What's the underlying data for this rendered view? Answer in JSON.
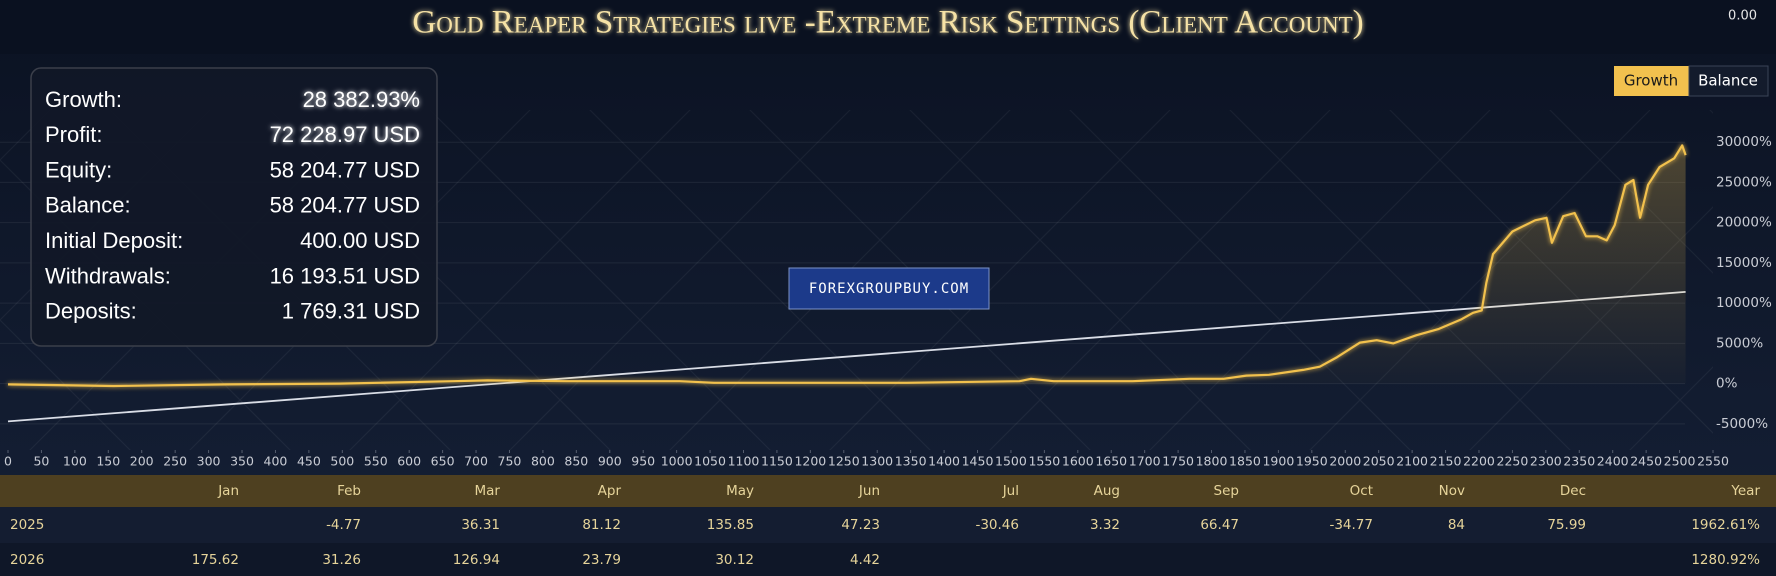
{
  "title": "Gold Reaper Strategies live -Extreme Risk Settings (Client Account)",
  "corner_value": "0.00",
  "watermark": "FOREXGROUPBUY.COM",
  "view_buttons": [
    "Growth",
    "Balance"
  ],
  "stats": [
    {
      "label": "Growth:",
      "value": "28 382.93%"
    },
    {
      "label": "Profit:",
      "value": "72 228.97 USD"
    },
    {
      "label": "Equity:",
      "value": "58 204.77 USD"
    },
    {
      "label": "Balance:",
      "value": "58 204.77 USD"
    },
    {
      "label": "Initial Deposit:",
      "value": "400.00 USD"
    },
    {
      "label": "Withdrawals:",
      "value": "16 193.51 USD"
    },
    {
      "label": "Deposits:",
      "value": "1 769.31 USD"
    }
  ],
  "chart_data": {
    "type": "line",
    "x": [
      0,
      158,
      327,
      496,
      666,
      717,
      835,
      1005,
      1056,
      1174,
      1344,
      1513,
      1530,
      1564,
      1682,
      1767,
      1818,
      1852,
      1886,
      1937,
      1962,
      1988,
      2022,
      2047,
      2072,
      2106,
      2140,
      2174,
      2191,
      2204,
      2211,
      2221,
      2250,
      2284,
      2301,
      2309,
      2326,
      2343,
      2360,
      2377,
      2391,
      2403,
      2419,
      2431,
      2441,
      2453,
      2470,
      2492,
      2504,
      2509
    ],
    "series": [
      {
        "name": "Growth",
        "color": "#f2c14e",
        "values": [
          -100,
          -300,
          -100,
          0,
          300,
          400,
          300,
          300,
          100,
          100,
          100,
          300,
          600,
          300,
          300,
          600,
          600,
          1000,
          1100,
          1700,
          2100,
          3300,
          5100,
          5400,
          5000,
          6000,
          6800,
          8000,
          8800,
          9100,
          12500,
          16100,
          18900,
          20300,
          20600,
          17500,
          20800,
          21200,
          18300,
          18300,
          17800,
          19700,
          24700,
          25300,
          20600,
          24700,
          26900,
          28000,
          29600,
          28400
        ]
      }
    ],
    "trend": {
      "color": "#d9dde6",
      "x": [
        0,
        2509
      ],
      "values": [
        -4700,
        11400
      ]
    },
    "xlim": [
      0,
      2550
    ],
    "xticks": [
      0,
      50,
      100,
      150,
      200,
      250,
      300,
      350,
      400,
      450,
      500,
      550,
      600,
      650,
      700,
      750,
      800,
      850,
      900,
      950,
      1000,
      1050,
      1100,
      1150,
      1200,
      1250,
      1300,
      1350,
      1400,
      1450,
      1500,
      1550,
      1600,
      1650,
      1700,
      1750,
      1800,
      1850,
      1900,
      1950,
      2000,
      2050,
      2100,
      2150,
      2200,
      2250,
      2300,
      2350,
      2400,
      2450,
      2500,
      2550
    ],
    "ylim": [
      -8000,
      34000
    ],
    "yticks": [
      {
        "value": -5000,
        "label": "-5000%"
      },
      {
        "value": 0,
        "label": "0%"
      },
      {
        "value": 5000,
        "label": "5000%"
      },
      {
        "value": 10000,
        "label": "10000%"
      },
      {
        "value": 15000,
        "label": "15000%"
      },
      {
        "value": 20000,
        "label": "20000%"
      },
      {
        "value": 25000,
        "label": "25000%"
      },
      {
        "value": 30000,
        "label": "30000%"
      }
    ],
    "grid": true
  },
  "table": {
    "header": [
      null,
      "Jan",
      "Feb",
      "Mar",
      "Apr",
      "May",
      "Jun",
      "Jul",
      "Aug",
      "Sep",
      "Oct",
      "Nov",
      "Dec",
      "Year"
    ],
    "rows": [
      [
        "2025",
        null,
        -4.77,
        36.31,
        81.12,
        135.85,
        47.23,
        -30.46,
        3.32,
        66.47,
        -34.77,
        84,
        75.99,
        "1962.61%"
      ],
      [
        "2026",
        175.62,
        31.26,
        126.94,
        23.79,
        30.12,
        4.42,
        null,
        null,
        null,
        null,
        null,
        null,
        "1280.92%"
      ]
    ]
  }
}
